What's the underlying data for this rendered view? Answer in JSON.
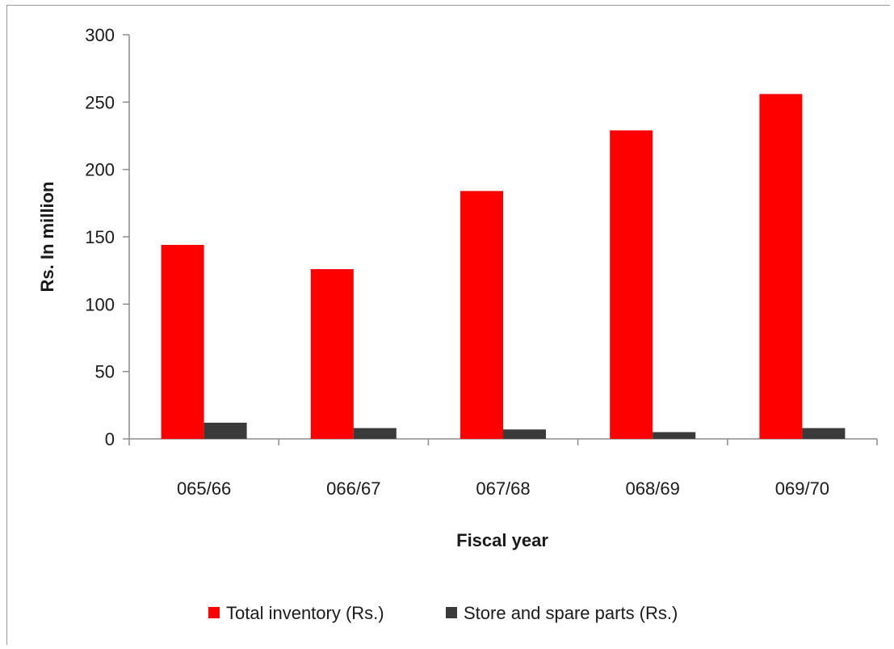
{
  "chart_data": {
    "type": "bar",
    "categories": [
      "065/66",
      "066/67",
      "067/68",
      "068/69",
      "069/70"
    ],
    "series": [
      {
        "name": "Total inventory (Rs.)",
        "values": [
          144,
          126,
          184,
          229,
          256
        ],
        "color": "#ff0000"
      },
      {
        "name": "Store and spare parts (Rs.)",
        "values": [
          12,
          8,
          7,
          5,
          8
        ],
        "color": "#3a3a3a"
      }
    ],
    "title": "",
    "xlabel": "Fiscal year",
    "ylabel": "Rs. In million",
    "ylim": [
      0,
      300
    ],
    "yticks": [
      0,
      50,
      100,
      150,
      200,
      250,
      300
    ],
    "grid": false,
    "legend": "bottom"
  }
}
